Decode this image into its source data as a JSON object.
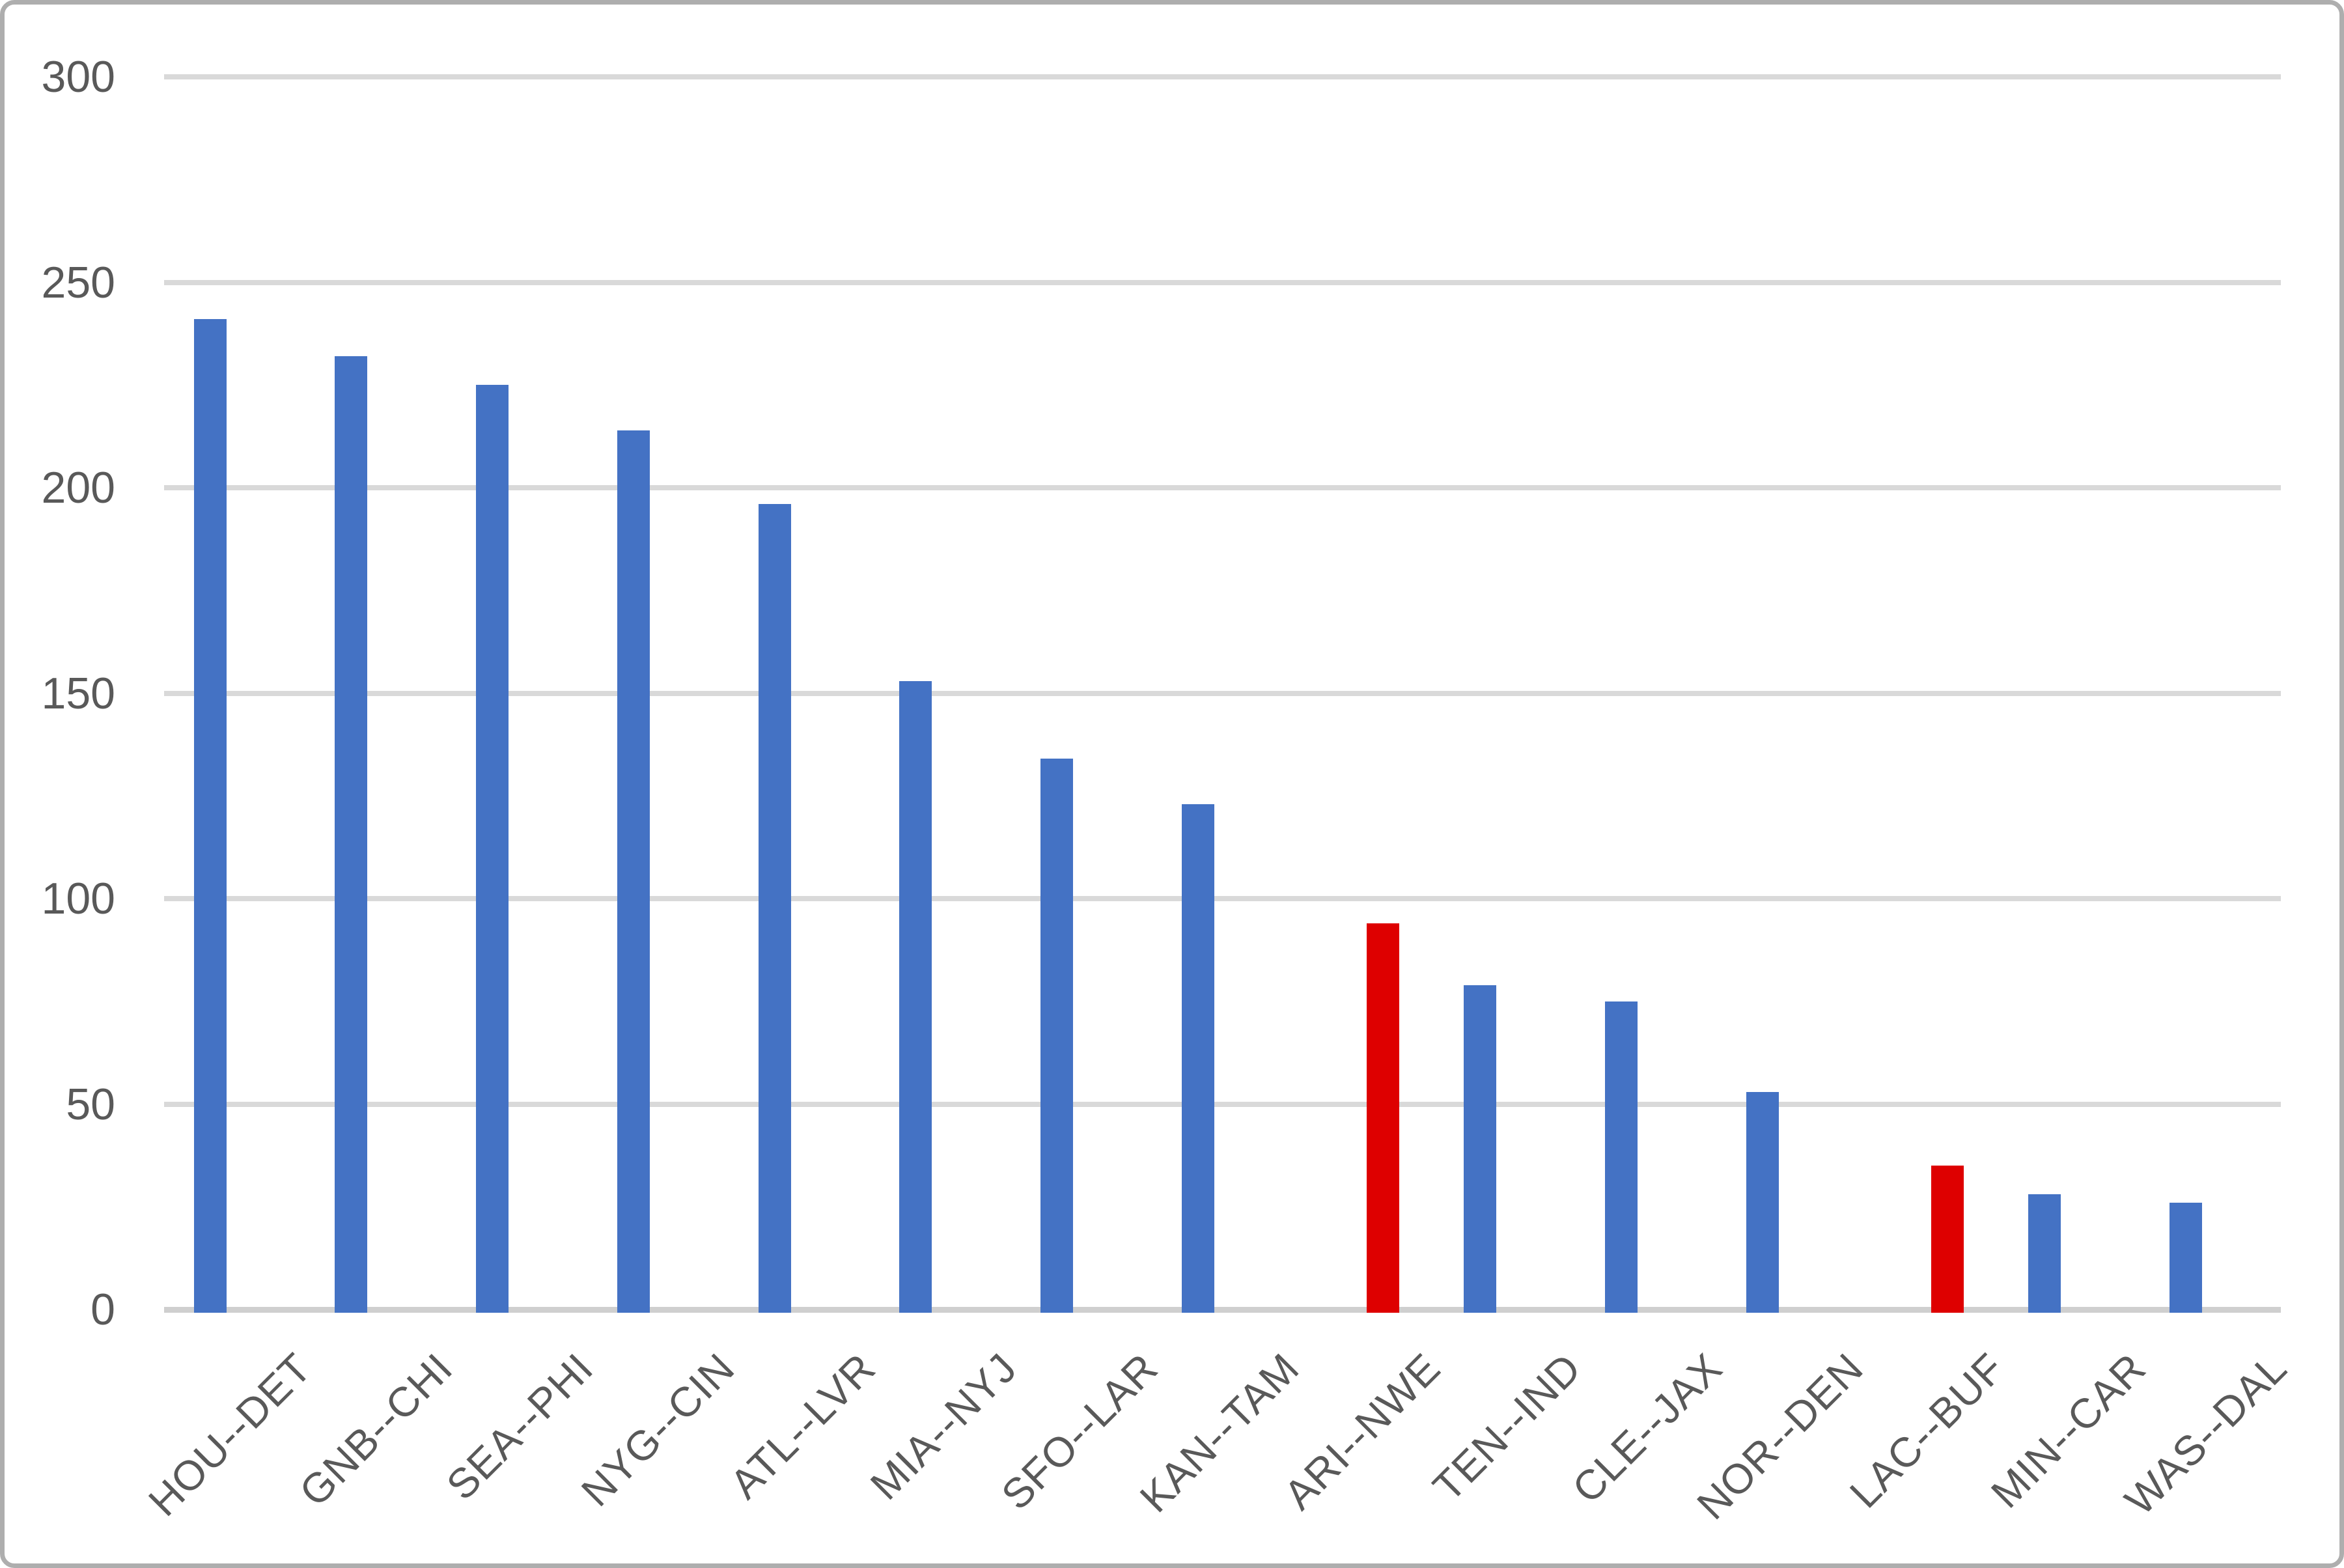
{
  "chart_data": {
    "type": "bar",
    "title": "",
    "xlabel": "",
    "ylabel": "",
    "categories": [
      "HOU--DET",
      "GNB--CHI",
      "SEA--PHI",
      "NYG--CIN",
      "ATL--LVR",
      "MIA--NYJ",
      "SFO--LAR",
      "KAN--TAM",
      "ARI--NWE",
      "TEN--IND",
      "CLE--JAX",
      "NOR--DEN",
      "LAC--BUF",
      "MIN--CAR",
      "WAS--DAL"
    ],
    "values": [
      241,
      232,
      225,
      214,
      196,
      153,
      134,
      123,
      94,
      79,
      75,
      53,
      35,
      28,
      26
    ],
    "highlighted_categories": [
      "ARI--NWE",
      "LAC--BUF"
    ],
    "bar_color": "#4472C4",
    "highlight_color": "#DE0000",
    "ylim": [
      0,
      300
    ],
    "yticks": [
      0,
      50,
      100,
      150,
      200,
      250,
      300
    ],
    "grid": true,
    "legend": "none"
  },
  "colors": {
    "gridline": "#D9D9D9",
    "axis_line": "#CFCFCF",
    "tick_text": "#595959",
    "frame_border": "#AEAEAE",
    "background": "#FFFFFF"
  }
}
